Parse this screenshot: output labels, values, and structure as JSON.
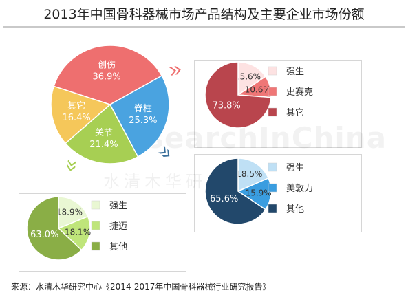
{
  "title": "2013年中国骨科器械市场产品结构及主要企业市场份额",
  "source": "来源：水清木华研究中心《2014-2017年中国骨科器械行业研究报告》",
  "watermark": {
    "en": "ResearchInChina",
    "cn": "水清木华研究中心"
  },
  "chart_data": [
    {
      "type": "pie",
      "slices": [
        {
          "label": "创伤",
          "value": 36.9,
          "color": "#ee6f6f"
        },
        {
          "label": "脊柱",
          "value": 25.3,
          "color": "#4aa3e0"
        },
        {
          "label": "关节",
          "value": 21.4,
          "color": "#a7cf53"
        },
        {
          "label": "其它",
          "value": 16.4,
          "color": "#f5c75a"
        }
      ]
    },
    {
      "type": "pie",
      "slices": [
        {
          "label": "强生",
          "value": 15.6,
          "color": "#fde2e2"
        },
        {
          "label": "史赛克",
          "value": 10.6,
          "color": "#ef7676"
        },
        {
          "label": "其它",
          "value": 73.8,
          "color": "#b9454d"
        }
      ]
    },
    {
      "type": "pie",
      "slices": [
        {
          "label": "强生",
          "value": 18.5,
          "color": "#bfe0f5"
        },
        {
          "label": "美敦力",
          "value": 15.9,
          "color": "#3a9de0"
        },
        {
          "label": "其他",
          "value": 65.6,
          "color": "#22486b"
        }
      ]
    },
    {
      "type": "pie",
      "slices": [
        {
          "label": "强生",
          "value": 18.9,
          "color": "#e9f7d3"
        },
        {
          "label": "捷迈",
          "value": 18.1,
          "color": "#bfe57a"
        },
        {
          "label": "其他",
          "value": 63.0,
          "color": "#8aae46"
        }
      ]
    }
  ]
}
